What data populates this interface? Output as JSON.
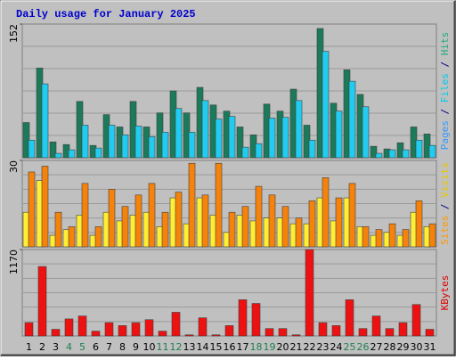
{
  "chart_data": [
    {
      "type": "bar",
      "title": "Daily usage for January 2025",
      "ylim": [
        0,
        152
      ],
      "yticks": [
        152
      ],
      "axis_label_parts": [
        {
          "text": "Pages",
          "color": "#3399ff"
        },
        {
          "text": " / ",
          "color": "#000080"
        },
        {
          "text": "Files",
          "color": "#00ccee"
        },
        {
          "text": " / ",
          "color": "#000080"
        },
        {
          "text": "Hits",
          "color": "#22aa77"
        }
      ],
      "series": [
        {
          "name": "Hits",
          "color": "#1b7a5a",
          "values": [
            40,
            102,
            18,
            15,
            64,
            14,
            49,
            35,
            64,
            35,
            51,
            76,
            51,
            80,
            60,
            53,
            35,
            26,
            61,
            53,
            78,
            37,
            147,
            62,
            100,
            72,
            13,
            10,
            17,
            35,
            27
          ]
        },
        {
          "name": "Files",
          "color": "#22ccf0",
          "values": [
            20,
            84,
            5,
            9,
            37,
            11,
            37,
            26,
            36,
            24,
            29,
            56,
            29,
            65,
            44,
            47,
            12,
            16,
            45,
            46,
            65,
            20,
            121,
            53,
            87,
            58,
            5,
            9,
            9,
            20,
            14
          ]
        }
      ]
    },
    {
      "type": "bar",
      "ylim": [
        0,
        30
      ],
      "yticks": [
        30
      ],
      "axis_label_parts": [
        {
          "text": "Sites",
          "color": "#ff9900"
        },
        {
          "text": " / ",
          "color": "#000080"
        },
        {
          "text": "Visits",
          "color": "#e6c800"
        }
      ],
      "series": [
        {
          "name": "Sites",
          "color": "#ffee33",
          "values": [
            12,
            23,
            4,
            6,
            11,
            4,
            12,
            9,
            11,
            12,
            7,
            17,
            8,
            17,
            11,
            5,
            11,
            9,
            10,
            10,
            8,
            8,
            17,
            9,
            17,
            7,
            4,
            5,
            4,
            12,
            7
          ]
        },
        {
          "name": "Visits",
          "color": "#f5820a",
          "values": [
            26,
            28,
            12,
            7,
            22,
            7,
            20,
            14,
            18,
            22,
            12,
            19,
            29,
            18,
            29,
            12,
            14,
            21,
            18,
            14,
            10,
            16,
            24,
            17,
            22,
            7,
            6,
            8,
            6,
            16,
            8
          ]
        }
      ]
    },
    {
      "type": "bar",
      "ylim": [
        0,
        1170
      ],
      "yticks": [
        1170
      ],
      "axis_label_parts": [
        {
          "text": "KBytes",
          "color": "#dd0000"
        }
      ],
      "series": [
        {
          "name": "KBytes",
          "color": "#ee1111",
          "values": [
            180,
            940,
            90,
            230,
            270,
            65,
            180,
            140,
            180,
            220,
            65,
            320,
            15,
            245,
            15,
            140,
            490,
            440,
            100,
            100,
            15,
            1170,
            180,
            140,
            490,
            100,
            270,
            100,
            180,
            425,
            90
          ]
        }
      ],
      "categories": [
        "1",
        "2",
        "3",
        "4",
        "5",
        "6",
        "7",
        "8",
        "9",
        "10",
        "11",
        "12",
        "13",
        "14",
        "15",
        "16",
        "17",
        "18",
        "19",
        "20",
        "21",
        "22",
        "23",
        "24",
        "25",
        "26",
        "27",
        "28",
        "29",
        "30",
        "31"
      ],
      "category_colors": [
        "#000",
        "#000",
        "#000",
        "#208050",
        "#208050",
        "#000",
        "#000",
        "#000",
        "#000",
        "#000",
        "#208050",
        "#208050",
        "#000",
        "#000",
        "#000",
        "#000",
        "#000",
        "#208050",
        "#208050",
        "#000",
        "#000",
        "#000",
        "#000",
        "#000",
        "#208050",
        "#208050",
        "#000",
        "#000",
        "#000",
        "#000",
        "#000"
      ]
    }
  ]
}
